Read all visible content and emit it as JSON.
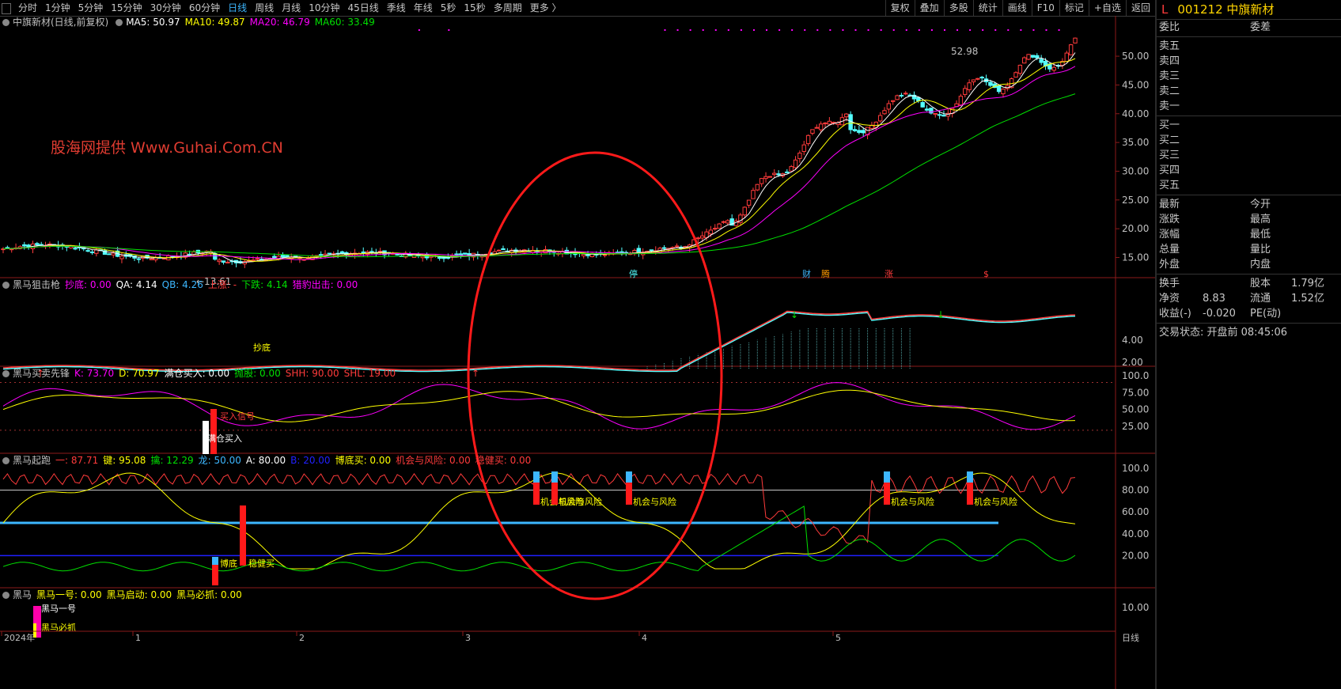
{
  "toolbar": {
    "periods": [
      "分时",
      "1分钟",
      "5分钟",
      "15分钟",
      "30分钟",
      "60分钟",
      "日线",
      "周线",
      "月线",
      "10分钟",
      "45日线",
      "季线",
      "年线",
      "5秒",
      "15秒",
      "多周期",
      "更多 〉"
    ],
    "active_period": "日线",
    "right_tools": [
      "复权",
      "叠加",
      "多股",
      "统计",
      "画线",
      "F10",
      "标记",
      "+自选",
      "返回"
    ]
  },
  "stock": {
    "marker": "L",
    "code": "001212",
    "name": "中旗新材"
  },
  "watermark": "股海网提供 Www.Guhai.Com.CN",
  "main_panel": {
    "title": "中旗新材(日线,前复权)",
    "ma": [
      {
        "label": "MA5: 50.97",
        "color": "#ffffff"
      },
      {
        "label": "MA10: 49.87",
        "color": "#ffff00"
      },
      {
        "label": "MA20: 46.79",
        "color": "#ff00ff"
      },
      {
        "label": "MA60: 33.49",
        "color": "#00e000"
      }
    ],
    "yaxis": [
      "50.00",
      "45.00",
      "40.00",
      "35.00",
      "30.00",
      "25.00",
      "20.00",
      "15.00"
    ],
    "high_label": "52.98",
    "low_label": "←13.61",
    "markers": [
      "停",
      "财",
      "腾",
      "涨",
      "$"
    ]
  },
  "panel2": {
    "name": "黑马狙击枪",
    "fields": [
      {
        "label": "抄底: 0.00",
        "color": "#ff00ff"
      },
      {
        "label": "QA: 4.14",
        "color": "#ffffff"
      },
      {
        "label": "QB: 4.26",
        "color": "#3db7ff"
      },
      {
        "label": "上涨: -",
        "color": "#ff3b3b"
      },
      {
        "label": "下跌: 4.14",
        "color": "#00e000"
      },
      {
        "label": "猎豹出击: 0.00",
        "color": "#ff00ff"
      }
    ],
    "yaxis": [
      "4.00",
      "2.00"
    ],
    "annotation": "抄底"
  },
  "panel3": {
    "name": "黑马买卖先锋",
    "fields": [
      {
        "label": "K: 73.70",
        "color": "#ff00ff"
      },
      {
        "label": "D: 70.97",
        "color": "#ffff00"
      },
      {
        "label": "满仓买入: 0.00",
        "color": "#ffffff"
      },
      {
        "label": "抛股: 0.00",
        "color": "#00e000"
      },
      {
        "label": "SHH: 90.00",
        "color": "#ff3b3b"
      },
      {
        "label": "SHL: 19.00",
        "color": "#ff3b3b"
      }
    ],
    "yaxis": [
      "100.0",
      "75.00",
      "50.00",
      "25.00"
    ],
    "annotations": [
      "买入信号",
      "满仓买入"
    ]
  },
  "panel4": {
    "name": "黑马起跑",
    "fields": [
      {
        "label": "一: 87.71",
        "color": "#ff3b3b"
      },
      {
        "label": "键: 95.08",
        "color": "#ffff00"
      },
      {
        "label": "擒: 12.29",
        "color": "#00e000"
      },
      {
        "label": "龙: 50.00",
        "color": "#3db7ff"
      },
      {
        "label": "A: 80.00",
        "color": "#ffffff"
      },
      {
        "label": "B: 20.00",
        "color": "#2020ff"
      },
      {
        "label": "博底买: 0.00",
        "color": "#ffff00"
      },
      {
        "label": "机会与风险: 0.00",
        "color": "#ff3b3b"
      },
      {
        "label": "稳健买: 0.00",
        "color": "#ff3b3b"
      }
    ],
    "yaxis": [
      "100.0",
      "80.00",
      "60.00",
      "40.00",
      "20.00"
    ],
    "annotations": [
      "机会与风险",
      "机会与风险",
      "机会与风险",
      "机会与风险",
      "机会与风险",
      "博底",
      "稳健买"
    ]
  },
  "panel5": {
    "name": "黑马",
    "fields": [
      {
        "label": "黑马一号: 0.00",
        "color": "#ffff00"
      },
      {
        "label": "黑马启动: 0.00",
        "color": "#ffff00"
      },
      {
        "label": "黑马必抓: 0.00",
        "color": "#ffff00"
      }
    ],
    "yaxis": [
      "10.00"
    ],
    "annotations": [
      "黑马一号",
      "黑马必抓"
    ]
  },
  "xaxis": {
    "labels": [
      "2024年",
      "1",
      "2",
      "3",
      "4",
      "5"
    ],
    "corner": "日线"
  },
  "quote": {
    "top": {
      "left": "委比",
      "right": "委差"
    },
    "sell": [
      "卖五",
      "卖四",
      "卖三",
      "卖二",
      "卖一"
    ],
    "buy": [
      "买一",
      "买二",
      "买三",
      "买四",
      "买五"
    ],
    "stats": [
      {
        "a": "最新",
        "b": "今开"
      },
      {
        "a": "涨跌",
        "b": "最高"
      },
      {
        "a": "涨幅",
        "b": "最低"
      },
      {
        "a": "总量",
        "b": "量比"
      },
      {
        "a": "外盘",
        "b": "内盘"
      }
    ],
    "fund": [
      {
        "a": "换手",
        "b": "股本",
        "d": "1.79亿"
      },
      {
        "a": "净资",
        "c": "8.83",
        "b": "流通",
        "d": "1.52亿"
      },
      {
        "a": "收益(-)",
        "c": "-0.020",
        "b": "PE(动)"
      }
    ],
    "status": "交易状态: 开盘前 08:45:06"
  }
}
